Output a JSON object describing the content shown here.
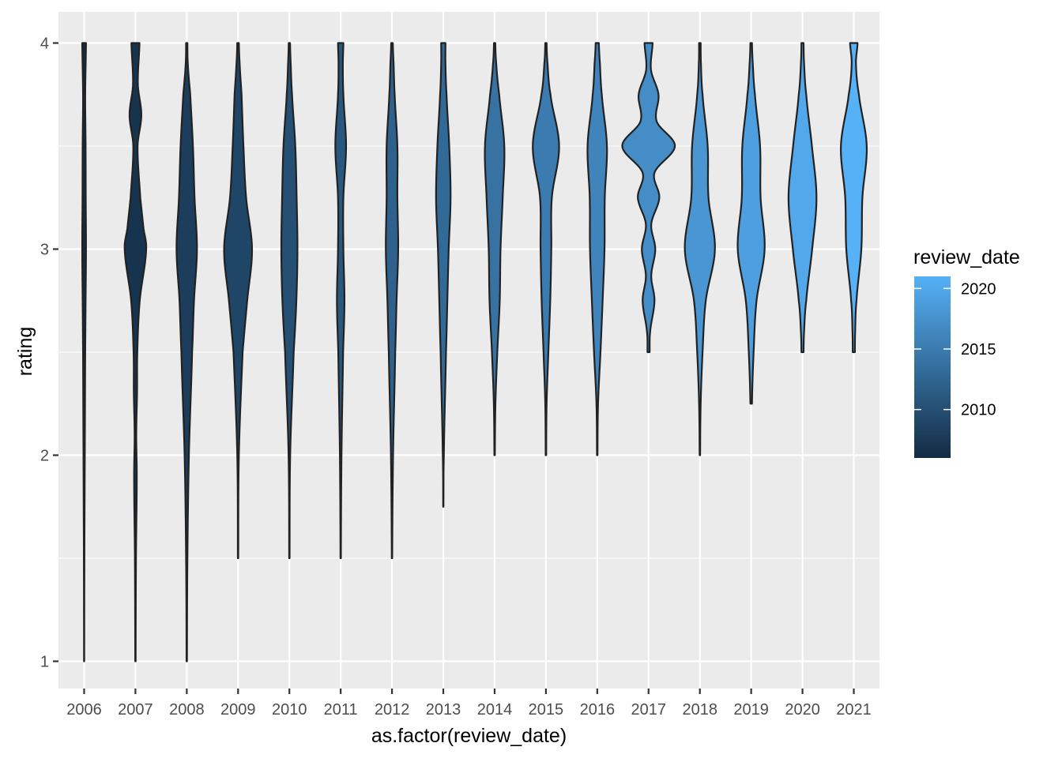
{
  "chart_data": {
    "type": "violin",
    "xlabel": "as.factor(review_date)",
    "ylabel": "rating",
    "ylim": [
      0.93,
      4.06
    ],
    "y_ticks": [
      1,
      2,
      3,
      4
    ],
    "grid": true,
    "legend_placement": "right",
    "legend": {
      "title": "review_date",
      "type": "colorbar",
      "range": [
        2006,
        2021
      ],
      "breaks": [
        2010,
        2015,
        2020
      ],
      "color_low": "#132b43",
      "color_high": "#56b1f7"
    },
    "categories": [
      "2006",
      "2007",
      "2008",
      "2009",
      "2010",
      "2011",
      "2012",
      "2013",
      "2014",
      "2015",
      "2016",
      "2017",
      "2018",
      "2019",
      "2020",
      "2021"
    ],
    "violins": [
      {
        "category": "2006",
        "min": 1.0,
        "max": 4.0,
        "profile": [
          [
            1.0,
            0.004
          ],
          [
            1.5,
            0.01
          ],
          [
            2.0,
            0.025
          ],
          [
            2.5,
            0.04
          ],
          [
            2.75,
            0.055
          ],
          [
            3.0,
            0.07
          ],
          [
            3.25,
            0.06
          ],
          [
            3.5,
            0.055
          ],
          [
            3.75,
            0.04
          ],
          [
            4.0,
            0.07
          ]
        ]
      },
      {
        "category": "2007",
        "min": 1.0,
        "max": 4.0,
        "profile": [
          [
            1.0,
            0.008
          ],
          [
            1.5,
            0.02
          ],
          [
            1.9,
            0.05
          ],
          [
            2.1,
            0.03
          ],
          [
            2.3,
            0.06
          ],
          [
            2.5,
            0.07
          ],
          [
            2.75,
            0.16
          ],
          [
            3.0,
            0.4
          ],
          [
            3.1,
            0.3
          ],
          [
            3.25,
            0.18
          ],
          [
            3.5,
            0.08
          ],
          [
            3.65,
            0.22
          ],
          [
            3.8,
            0.09
          ],
          [
            4.0,
            0.15
          ]
        ]
      },
      {
        "category": "2008",
        "min": 1.0,
        "max": 4.0,
        "profile": [
          [
            1.0,
            0.008
          ],
          [
            1.5,
            0.025
          ],
          [
            2.0,
            0.08
          ],
          [
            2.5,
            0.2
          ],
          [
            2.75,
            0.27
          ],
          [
            3.0,
            0.38
          ],
          [
            3.25,
            0.29
          ],
          [
            3.5,
            0.23
          ],
          [
            3.75,
            0.13
          ],
          [
            3.9,
            0.04
          ],
          [
            4.0,
            0.025
          ]
        ]
      },
      {
        "category": "2009",
        "min": 1.5,
        "max": 4.0,
        "profile": [
          [
            1.5,
            0.008
          ],
          [
            2.0,
            0.03
          ],
          [
            2.5,
            0.17
          ],
          [
            2.75,
            0.34
          ],
          [
            3.0,
            0.52
          ],
          [
            3.25,
            0.3
          ],
          [
            3.5,
            0.2
          ],
          [
            3.75,
            0.13
          ],
          [
            3.9,
            0.06
          ],
          [
            4.0,
            0.03
          ]
        ]
      },
      {
        "category": "2010",
        "min": 1.5,
        "max": 4.0,
        "profile": [
          [
            1.5,
            0.008
          ],
          [
            2.0,
            0.03
          ],
          [
            2.5,
            0.16
          ],
          [
            2.75,
            0.26
          ],
          [
            3.0,
            0.3
          ],
          [
            3.25,
            0.27
          ],
          [
            3.5,
            0.22
          ],
          [
            3.75,
            0.1
          ],
          [
            3.9,
            0.05
          ],
          [
            4.0,
            0.025
          ]
        ]
      },
      {
        "category": "2011",
        "min": 1.5,
        "max": 4.0,
        "profile": [
          [
            1.5,
            0.008
          ],
          [
            2.0,
            0.03
          ],
          [
            2.5,
            0.09
          ],
          [
            2.75,
            0.14
          ],
          [
            3.0,
            0.1
          ],
          [
            3.25,
            0.1
          ],
          [
            3.5,
            0.2
          ],
          [
            3.75,
            0.1
          ],
          [
            3.9,
            0.08
          ],
          [
            4.0,
            0.1
          ]
        ]
      },
      {
        "category": "2012",
        "min": 1.5,
        "max": 4.0,
        "profile": [
          [
            1.5,
            0.008
          ],
          [
            2.0,
            0.04
          ],
          [
            2.5,
            0.12
          ],
          [
            2.75,
            0.17
          ],
          [
            3.0,
            0.23
          ],
          [
            3.25,
            0.2
          ],
          [
            3.5,
            0.2
          ],
          [
            3.75,
            0.1
          ],
          [
            3.9,
            0.06
          ],
          [
            4.0,
            0.03
          ]
        ]
      },
      {
        "category": "2013",
        "min": 1.75,
        "max": 4.0,
        "profile": [
          [
            1.75,
            0.006
          ],
          [
            2.0,
            0.02
          ],
          [
            2.5,
            0.1
          ],
          [
            2.75,
            0.15
          ],
          [
            3.0,
            0.2
          ],
          [
            3.25,
            0.27
          ],
          [
            3.5,
            0.22
          ],
          [
            3.75,
            0.12
          ],
          [
            3.9,
            0.08
          ],
          [
            4.0,
            0.08
          ]
        ]
      },
      {
        "category": "2014",
        "min": 2.0,
        "max": 4.0,
        "profile": [
          [
            2.0,
            0.01
          ],
          [
            2.25,
            0.03
          ],
          [
            2.5,
            0.1
          ],
          [
            2.75,
            0.19
          ],
          [
            3.0,
            0.22
          ],
          [
            3.25,
            0.3
          ],
          [
            3.5,
            0.36
          ],
          [
            3.75,
            0.17
          ],
          [
            3.9,
            0.06
          ],
          [
            4.0,
            0.025
          ]
        ]
      },
      {
        "category": "2015",
        "min": 2.0,
        "max": 4.0,
        "profile": [
          [
            2.0,
            0.01
          ],
          [
            2.25,
            0.025
          ],
          [
            2.5,
            0.09
          ],
          [
            2.75,
            0.16
          ],
          [
            3.0,
            0.2
          ],
          [
            3.25,
            0.22
          ],
          [
            3.5,
            0.49
          ],
          [
            3.75,
            0.17
          ],
          [
            3.9,
            0.06
          ],
          [
            4.0,
            0.025
          ]
        ]
      },
      {
        "category": "2016",
        "min": 2.0,
        "max": 4.0,
        "profile": [
          [
            2.0,
            0.01
          ],
          [
            2.25,
            0.03
          ],
          [
            2.5,
            0.12
          ],
          [
            2.75,
            0.2
          ],
          [
            3.0,
            0.27
          ],
          [
            3.25,
            0.28
          ],
          [
            3.5,
            0.36
          ],
          [
            3.75,
            0.17
          ],
          [
            3.9,
            0.1
          ],
          [
            4.0,
            0.06
          ]
        ]
      },
      {
        "category": "2017",
        "min": 2.5,
        "max": 4.0,
        "profile": [
          [
            2.5,
            0.04
          ],
          [
            2.6,
            0.06
          ],
          [
            2.75,
            0.22
          ],
          [
            2.87,
            0.1
          ],
          [
            3.0,
            0.25
          ],
          [
            3.12,
            0.1
          ],
          [
            3.25,
            0.4
          ],
          [
            3.37,
            0.22
          ],
          [
            3.5,
            0.98
          ],
          [
            3.62,
            0.3
          ],
          [
            3.75,
            0.37
          ],
          [
            3.87,
            0.09
          ],
          [
            4.0,
            0.15
          ]
        ]
      },
      {
        "category": "2018",
        "min": 2.0,
        "max": 4.0,
        "profile": [
          [
            2.0,
            0.01
          ],
          [
            2.25,
            0.03
          ],
          [
            2.5,
            0.1
          ],
          [
            2.75,
            0.22
          ],
          [
            3.0,
            0.56
          ],
          [
            3.25,
            0.32
          ],
          [
            3.5,
            0.29
          ],
          [
            3.75,
            0.1
          ],
          [
            3.9,
            0.04
          ],
          [
            4.0,
            0.03
          ]
        ]
      },
      {
        "category": "2019",
        "min": 2.25,
        "max": 4.0,
        "profile": [
          [
            2.25,
            0.03
          ],
          [
            2.5,
            0.09
          ],
          [
            2.75,
            0.2
          ],
          [
            3.0,
            0.5
          ],
          [
            3.25,
            0.35
          ],
          [
            3.5,
            0.33
          ],
          [
            3.75,
            0.14
          ],
          [
            3.9,
            0.06
          ],
          [
            4.0,
            0.03
          ]
        ]
      },
      {
        "category": "2020",
        "min": 2.5,
        "max": 4.0,
        "profile": [
          [
            2.5,
            0.04
          ],
          [
            2.6,
            0.06
          ],
          [
            2.75,
            0.14
          ],
          [
            3.0,
            0.36
          ],
          [
            3.25,
            0.52
          ],
          [
            3.5,
            0.35
          ],
          [
            3.75,
            0.14
          ],
          [
            3.9,
            0.06
          ],
          [
            4.0,
            0.04
          ]
        ]
      },
      {
        "category": "2021",
        "min": 2.5,
        "max": 4.0,
        "profile": [
          [
            2.5,
            0.04
          ],
          [
            2.6,
            0.05
          ],
          [
            2.75,
            0.1
          ],
          [
            3.0,
            0.28
          ],
          [
            3.25,
            0.32
          ],
          [
            3.5,
            0.48
          ],
          [
            3.75,
            0.19
          ],
          [
            3.9,
            0.08
          ],
          [
            4.0,
            0.14
          ]
        ]
      }
    ]
  }
}
